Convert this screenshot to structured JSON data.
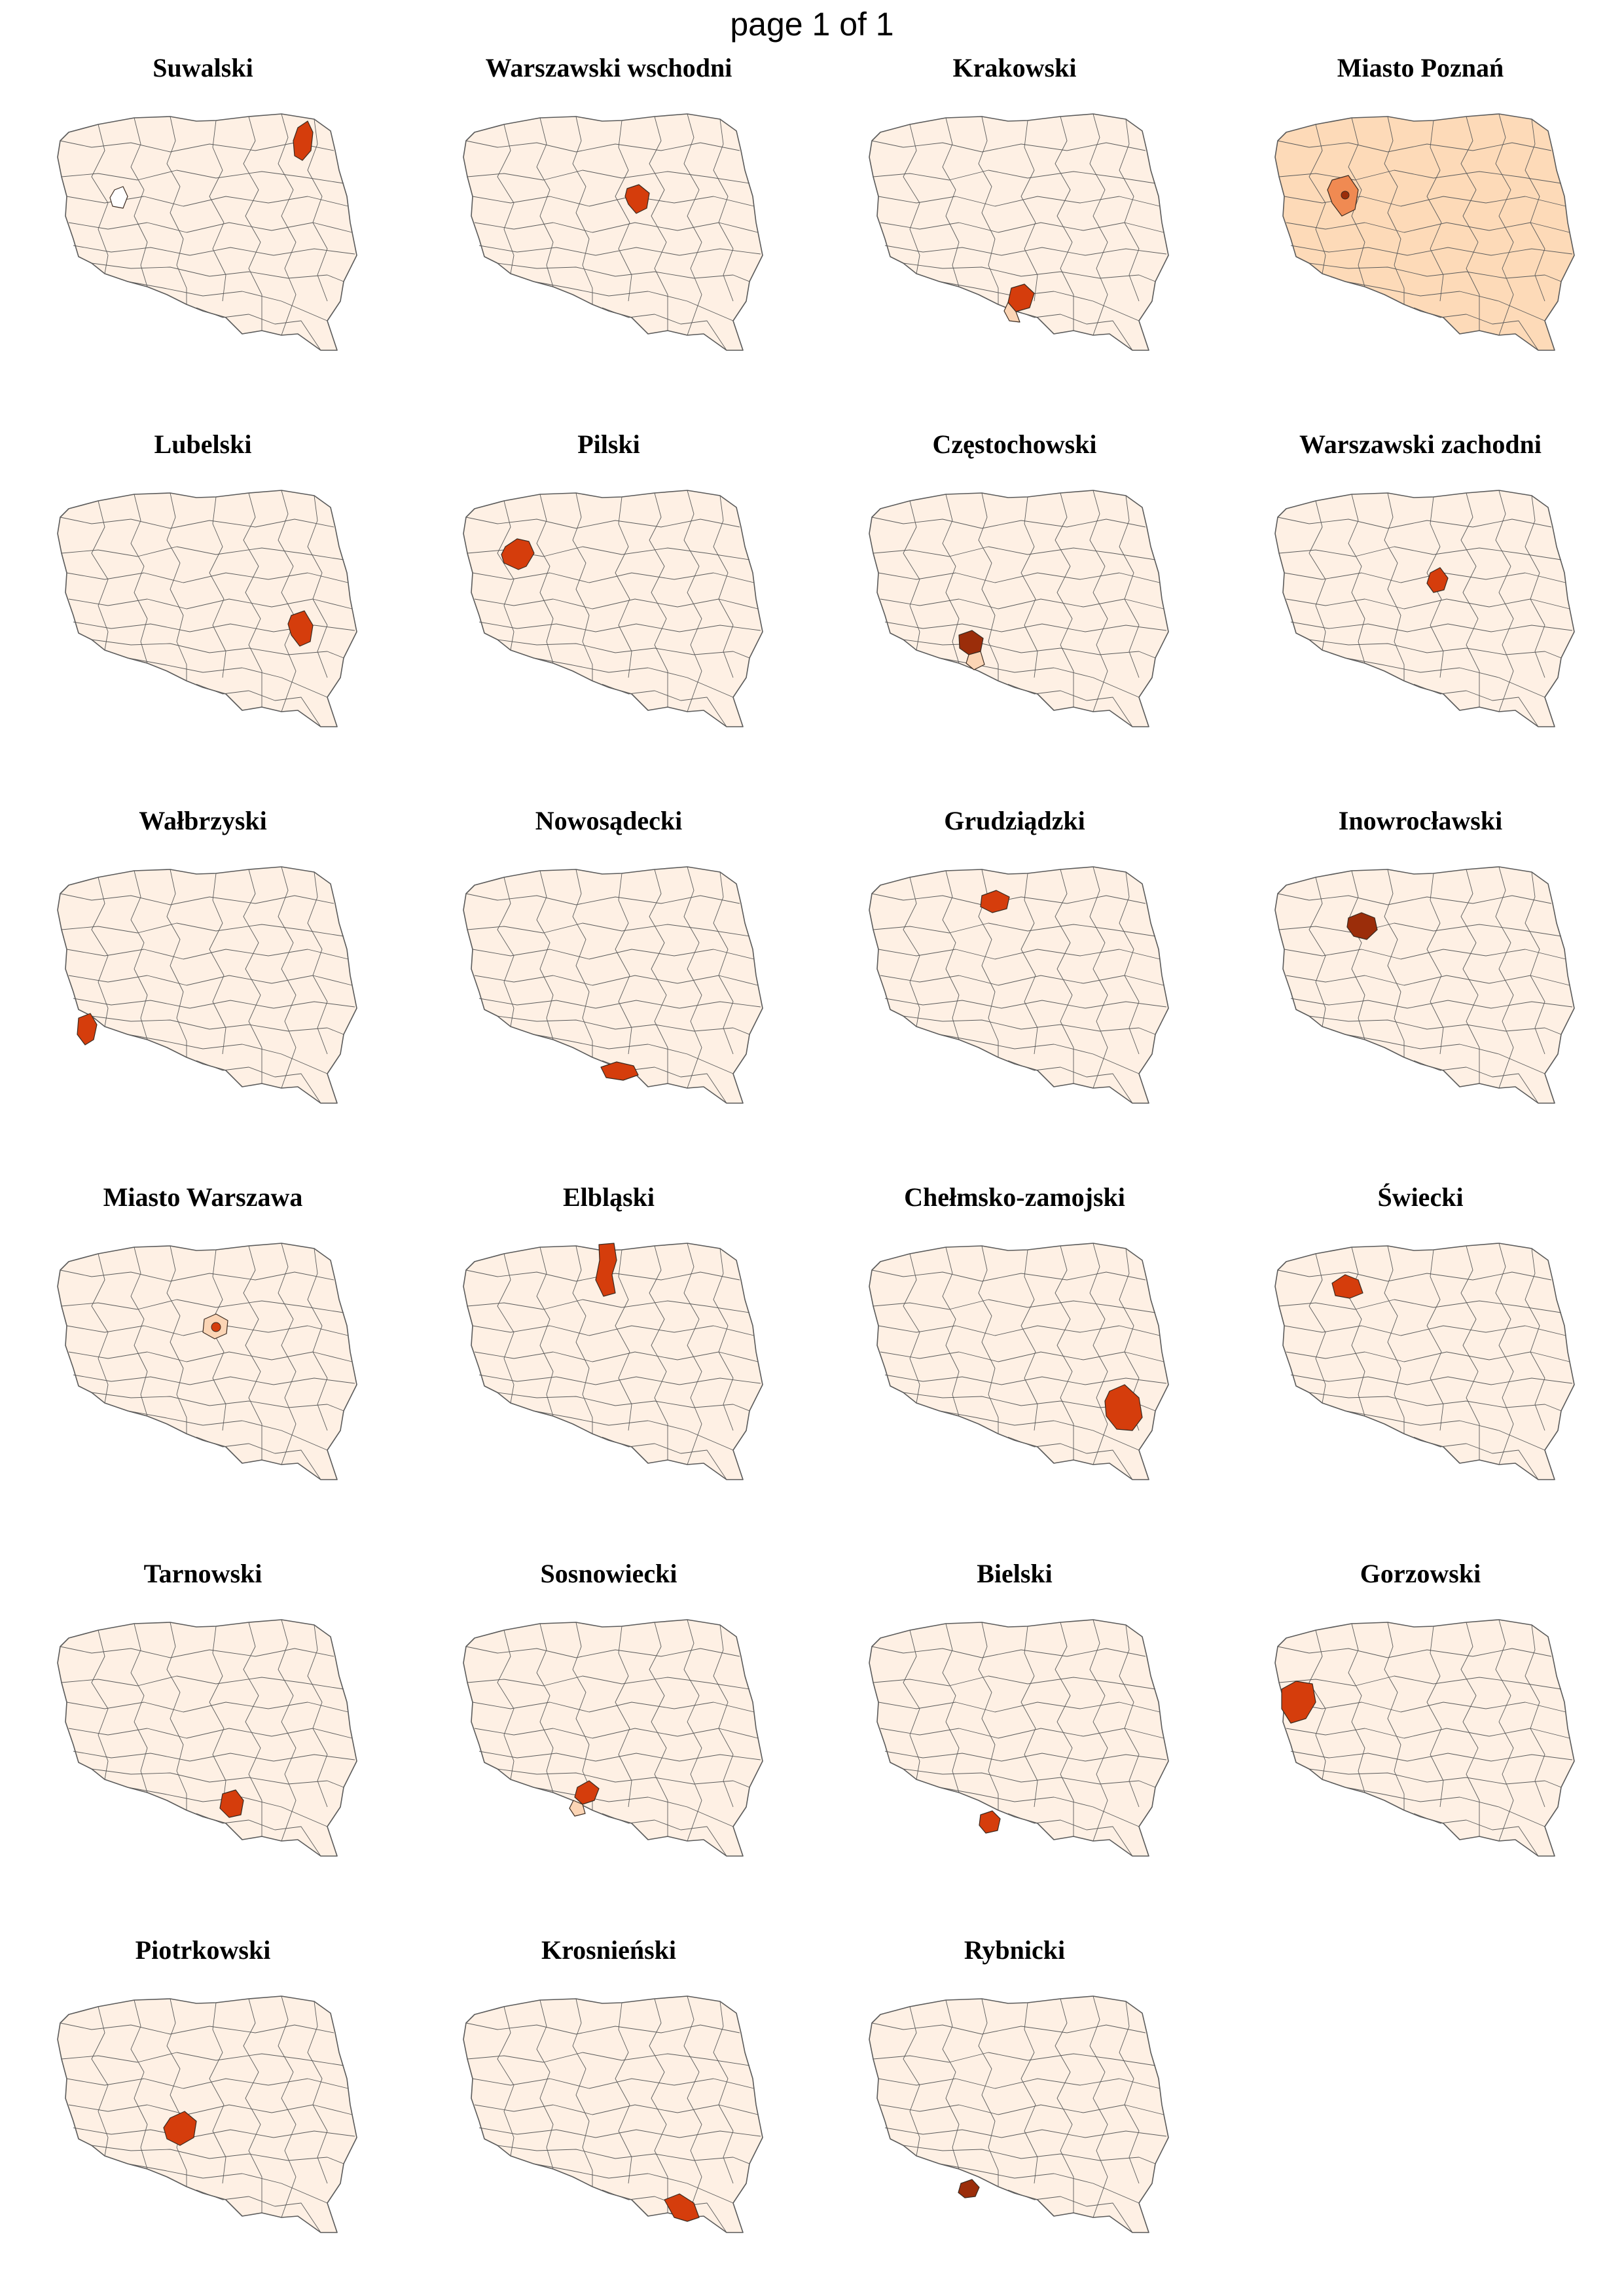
{
  "page": {
    "header": "page 1 of 1"
  },
  "colors": {
    "background_region": "#fef0e4",
    "poznan_background": "#fddab8",
    "poznan_neighbour": "#f08a52",
    "highlight": "#d53d0c",
    "highlight_dark": "#9b2d0a",
    "pale_neighbour": "#fcd5b5",
    "no_data": "#ffffff",
    "border": "#5a5a5a"
  },
  "panels": [
    {
      "title": "Suwalski"
    },
    {
      "title": "Warszawski wschodni"
    },
    {
      "title": "Krakowski"
    },
    {
      "title": "Miasto Poznań"
    },
    {
      "title": "Lubelski"
    },
    {
      "title": "Pilski"
    },
    {
      "title": "Częstochowski"
    },
    {
      "title": "Warszawski zachodni"
    },
    {
      "title": "Wałbrzyski"
    },
    {
      "title": "Nowosądecki"
    },
    {
      "title": "Grudziądzki"
    },
    {
      "title": "Inowrocławski"
    },
    {
      "title": "Miasto Warszawa"
    },
    {
      "title": "Elbląski"
    },
    {
      "title": "Chełmsko-zamojski"
    },
    {
      "title": "Świecki"
    },
    {
      "title": "Tarnowski"
    },
    {
      "title": "Sosnowiecki"
    },
    {
      "title": "Bielski"
    },
    {
      "title": "Gorzowski"
    },
    {
      "title": "Piotrkowski"
    },
    {
      "title": "Krosnieński"
    },
    {
      "title": "Rybnicki"
    }
  ]
}
